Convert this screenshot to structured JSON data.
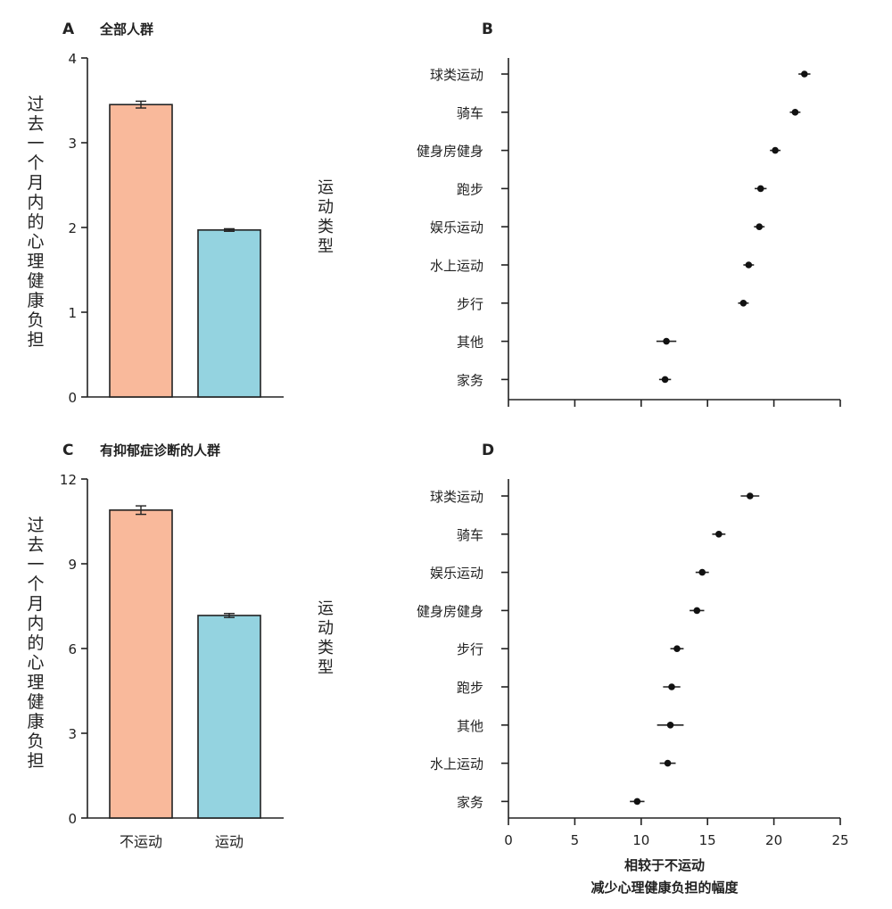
{
  "chart_data": [
    {
      "panel": "A",
      "type": "bar",
      "title": "全部人群",
      "ylabel": "过去一个月内的心理健康负担",
      "ylim": [
        0,
        4
      ],
      "yticks": [
        0,
        1,
        2,
        3,
        4
      ],
      "categories": [
        "不运动",
        "运动"
      ],
      "values": [
        3.45,
        1.97
      ],
      "errors": [
        0.04,
        0.015
      ],
      "colors": [
        "#f9b99b",
        "#94d3e0"
      ]
    },
    {
      "panel": "B",
      "type": "scatter",
      "ylabel": "运动类型",
      "xlim": [
        0,
        25
      ],
      "categories": [
        "球类运动",
        "骑车",
        "健身房健身",
        "跑步",
        "娱乐运动",
        "水上运动",
        "步行",
        "其他",
        "家务"
      ],
      "values": [
        22.3,
        21.6,
        20.1,
        19.0,
        18.9,
        18.1,
        17.7,
        11.9,
        11.8
      ],
      "errors": [
        0.45,
        0.4,
        0.4,
        0.45,
        0.4,
        0.4,
        0.4,
        0.75,
        0.45
      ]
    },
    {
      "panel": "C",
      "type": "bar",
      "title": "有抑郁症诊断的人群",
      "ylabel": "过去一个月内的心理健康负担",
      "ylim": [
        0,
        12
      ],
      "yticks": [
        0,
        3,
        6,
        9,
        12
      ],
      "categories": [
        "不运动",
        "运动"
      ],
      "values": [
        10.9,
        7.17
      ],
      "errors": [
        0.15,
        0.07
      ],
      "colors": [
        "#f9b99b",
        "#94d3e0"
      ]
    },
    {
      "panel": "D",
      "type": "scatter",
      "ylabel": "运动类型",
      "xlim": [
        0,
        25
      ],
      "xticks": [
        0,
        5,
        10,
        15,
        20,
        25
      ],
      "xlabel": [
        "相较于不运动",
        "减少心理健康负担的幅度"
      ],
      "categories": [
        "球类运动",
        "骑车",
        "娱乐运动",
        "健身房健身",
        "步行",
        "跑步",
        "其他",
        "水上运动",
        "家务"
      ],
      "values": [
        18.2,
        15.85,
        14.6,
        14.2,
        12.7,
        12.3,
        12.2,
        12.0,
        9.7
      ],
      "errors": [
        0.7,
        0.5,
        0.5,
        0.55,
        0.5,
        0.65,
        1.0,
        0.6,
        0.55
      ]
    }
  ]
}
